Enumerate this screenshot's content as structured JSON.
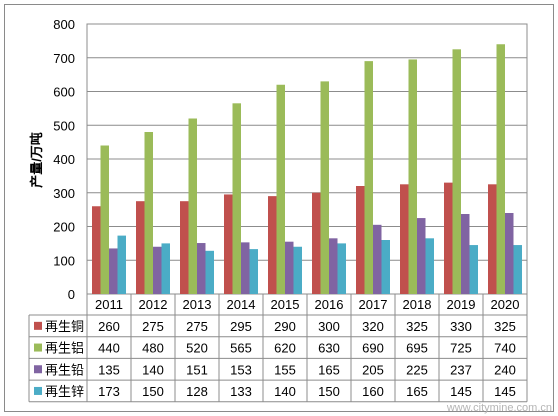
{
  "chart_data": {
    "type": "bar",
    "title": "",
    "xlabel": "",
    "ylabel": "产量/万吨",
    "ylim": [
      0,
      800
    ],
    "yticks": [
      0,
      100,
      200,
      300,
      400,
      500,
      600,
      700,
      800
    ],
    "grid": true,
    "legend": "data-table-left",
    "categories": [
      "2011",
      "2012",
      "2013",
      "2014",
      "2015",
      "2016",
      "2017",
      "2018",
      "2019",
      "2020"
    ],
    "series": [
      {
        "name": "再生铜",
        "color": "#c0504d",
        "values": [
          260,
          275,
          275,
          295,
          290,
          300,
          320,
          325,
          330,
          325
        ]
      },
      {
        "name": "再生铝",
        "color": "#9bbb59",
        "values": [
          440,
          480,
          520,
          565,
          620,
          630,
          690,
          695,
          725,
          740
        ]
      },
      {
        "name": "再生铅",
        "color": "#8064a2",
        "values": [
          135,
          140,
          151,
          153,
          155,
          165,
          205,
          225,
          237,
          240
        ]
      },
      {
        "name": "再生锌",
        "color": "#4bacc6",
        "values": [
          173,
          150,
          128,
          133,
          140,
          150,
          160,
          165,
          145,
          145
        ]
      }
    ]
  },
  "watermark": "www.citymine.com.cn"
}
